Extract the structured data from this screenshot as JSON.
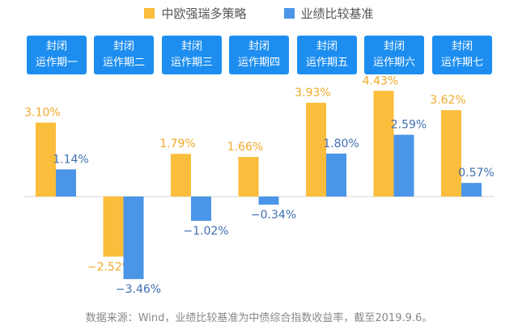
{
  "legend": {
    "strategy": "中欧强瑞多策略",
    "benchmark": "业绩比较基准"
  },
  "colors": {
    "strategy": "#fbbd3c",
    "benchmark": "#4a95e8",
    "period_bg": "#1d8ef0",
    "label_strategy": "#f0a92a",
    "label_benchmark": "#3f6fb0"
  },
  "periods": [
    {
      "line1": "封闭",
      "line2": "运作期一"
    },
    {
      "line1": "封闭",
      "line2": "运作期二"
    },
    {
      "line1": "封闭",
      "line2": "运作期三"
    },
    {
      "line1": "封闭",
      "line2": "运作期四"
    },
    {
      "line1": "封闭",
      "line2": "运作期五"
    },
    {
      "line1": "封闭",
      "line2": "运作期六"
    },
    {
      "line1": "封闭",
      "line2": "运作期七"
    }
  ],
  "chart_data": {
    "type": "bar",
    "categories": [
      "封闭运作期一",
      "封闭运作期二",
      "封闭运作期三",
      "封闭运作期四",
      "封闭运作期五",
      "封闭运作期六",
      "封闭运作期七"
    ],
    "series": [
      {
        "name": "中欧强瑞多策略",
        "values": [
          3.1,
          -2.52,
          1.79,
          1.66,
          3.93,
          4.43,
          3.62
        ],
        "labels": [
          "3.10%",
          "−2.52%",
          "1.79%",
          "1.66%",
          "3.93%",
          "4.43%",
          "3.62%"
        ]
      },
      {
        "name": "业绩比较基准",
        "values": [
          1.14,
          -3.46,
          -1.02,
          -0.34,
          1.8,
          2.59,
          0.57
        ],
        "labels": [
          "1.14%",
          "−3.46%",
          "−1.02%",
          "−0.34%",
          "1.80%",
          "2.59%",
          "0.57%"
        ]
      }
    ],
    "ylim": [
      -3.8,
      4.5
    ],
    "grid": false,
    "legend_position": "top"
  },
  "source": "数据来源：Wind，业绩比较基准为中债综合指数收益率，截至2019.9.6。"
}
